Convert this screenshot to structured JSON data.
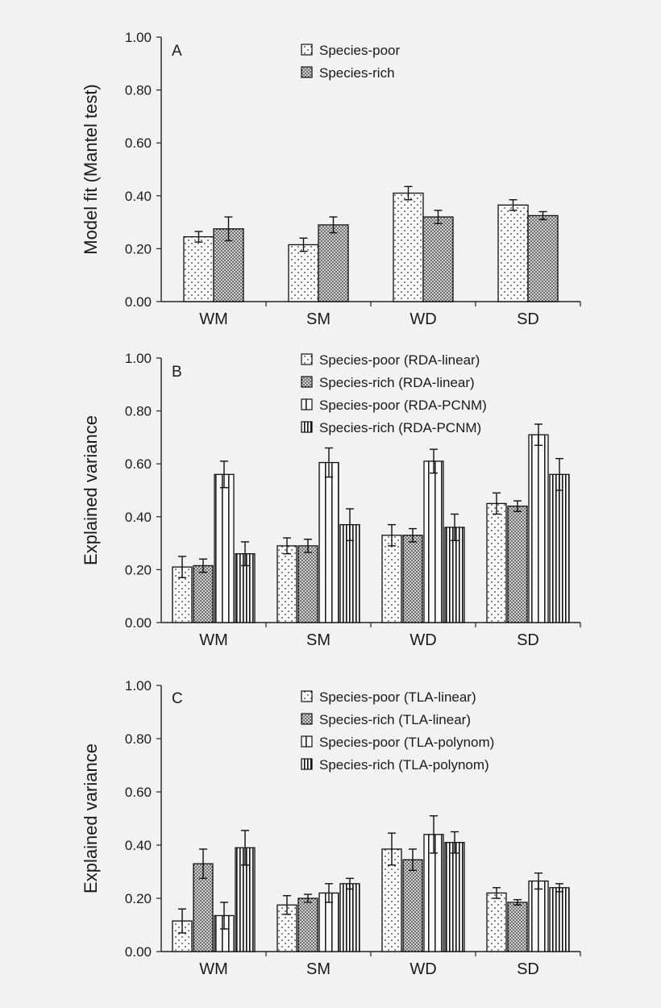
{
  "chart_data": [
    {
      "type": "bar",
      "panel": "A",
      "ylabel": "Model fit (Mantel test)",
      "xlabel": "",
      "ylim": [
        0,
        1.0
      ],
      "yticks": [
        "0.00",
        "0.20",
        "0.40",
        "0.60",
        "0.80",
        "1.00"
      ],
      "categories": [
        "WM",
        "SM",
        "WD",
        "SD"
      ],
      "legend_position": "top-center",
      "series": [
        {
          "name": "Species-poor",
          "pattern": "dots-sparse",
          "values": [
            0.245,
            0.215,
            0.41,
            0.365
          ],
          "errors": [
            0.02,
            0.025,
            0.025,
            0.02
          ]
        },
        {
          "name": "Species-rich",
          "pattern": "dots-dense",
          "values": [
            0.275,
            0.29,
            0.32,
            0.325
          ],
          "errors": [
            0.045,
            0.03,
            0.025,
            0.015
          ]
        }
      ]
    },
    {
      "type": "bar",
      "panel": "B",
      "ylabel": "Explained variance",
      "xlabel": "",
      "ylim": [
        0,
        1.0
      ],
      "yticks": [
        "0.00",
        "0.20",
        "0.40",
        "0.60",
        "0.80",
        "1.00"
      ],
      "categories": [
        "WM",
        "SM",
        "WD",
        "SD"
      ],
      "legend_position": "top-center",
      "series": [
        {
          "name": "Species-poor (RDA-linear)",
          "pattern": "dots-sparse",
          "values": [
            0.21,
            0.29,
            0.33,
            0.45
          ],
          "errors": [
            0.04,
            0.03,
            0.04,
            0.04
          ]
        },
        {
          "name": "Species-rich (RDA-linear)",
          "pattern": "dots-dense",
          "values": [
            0.215,
            0.29,
            0.33,
            0.44
          ],
          "errors": [
            0.025,
            0.025,
            0.025,
            0.02
          ]
        },
        {
          "name": "Species-poor (RDA-PCNM)",
          "pattern": "vlines-sparse",
          "values": [
            0.56,
            0.605,
            0.61,
            0.71
          ],
          "errors": [
            0.05,
            0.055,
            0.045,
            0.04
          ]
        },
        {
          "name": "Species-rich (RDA-PCNM)",
          "pattern": "vlines-dense",
          "values": [
            0.26,
            0.37,
            0.36,
            0.56
          ],
          "errors": [
            0.045,
            0.06,
            0.05,
            0.06
          ]
        }
      ]
    },
    {
      "type": "bar",
      "panel": "C",
      "ylabel": "Explained variance",
      "xlabel": "",
      "ylim": [
        0,
        1.0
      ],
      "yticks": [
        "0.00",
        "0.20",
        "0.40",
        "0.60",
        "0.80",
        "1.00"
      ],
      "categories": [
        "WM",
        "SM",
        "WD",
        "SD"
      ],
      "legend_position": "top-center",
      "series": [
        {
          "name": "Species-poor (TLA-linear)",
          "pattern": "dots-sparse",
          "values": [
            0.115,
            0.175,
            0.385,
            0.22
          ],
          "errors": [
            0.045,
            0.035,
            0.06,
            0.02
          ]
        },
        {
          "name": "Species-rich (TLA-linear)",
          "pattern": "dots-dense",
          "values": [
            0.33,
            0.2,
            0.345,
            0.185
          ],
          "errors": [
            0.055,
            0.015,
            0.04,
            0.01
          ]
        },
        {
          "name": "Species-poor (TLA-polynom)",
          "pattern": "vlines-sparse",
          "values": [
            0.135,
            0.22,
            0.44,
            0.265
          ],
          "errors": [
            0.05,
            0.035,
            0.07,
            0.03
          ]
        },
        {
          "name": "Species-rich (TLA-polynom)",
          "pattern": "vlines-dense",
          "values": [
            0.39,
            0.255,
            0.41,
            0.24
          ],
          "errors": [
            0.065,
            0.02,
            0.04,
            0.015
          ]
        }
      ]
    }
  ]
}
